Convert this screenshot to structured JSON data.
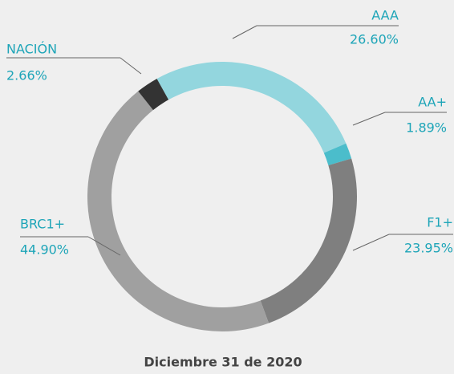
{
  "chart_data": {
    "type": "donut",
    "categories": [
      "AAA",
      "AA+",
      "F1+",
      "BRC1+",
      "NACIÓN"
    ],
    "values": [
      26.6,
      1.89,
      23.95,
      44.9,
      2.66
    ],
    "value_labels": [
      "26.60%",
      "1.89%",
      "23.95%",
      "44.90%",
      "2.66%"
    ],
    "colors": [
      "#93d6de",
      "#4bbdcb",
      "#7f7f7f",
      "#a0a0a0",
      "#333333"
    ],
    "caption": "Diciembre 31 de 2020"
  }
}
